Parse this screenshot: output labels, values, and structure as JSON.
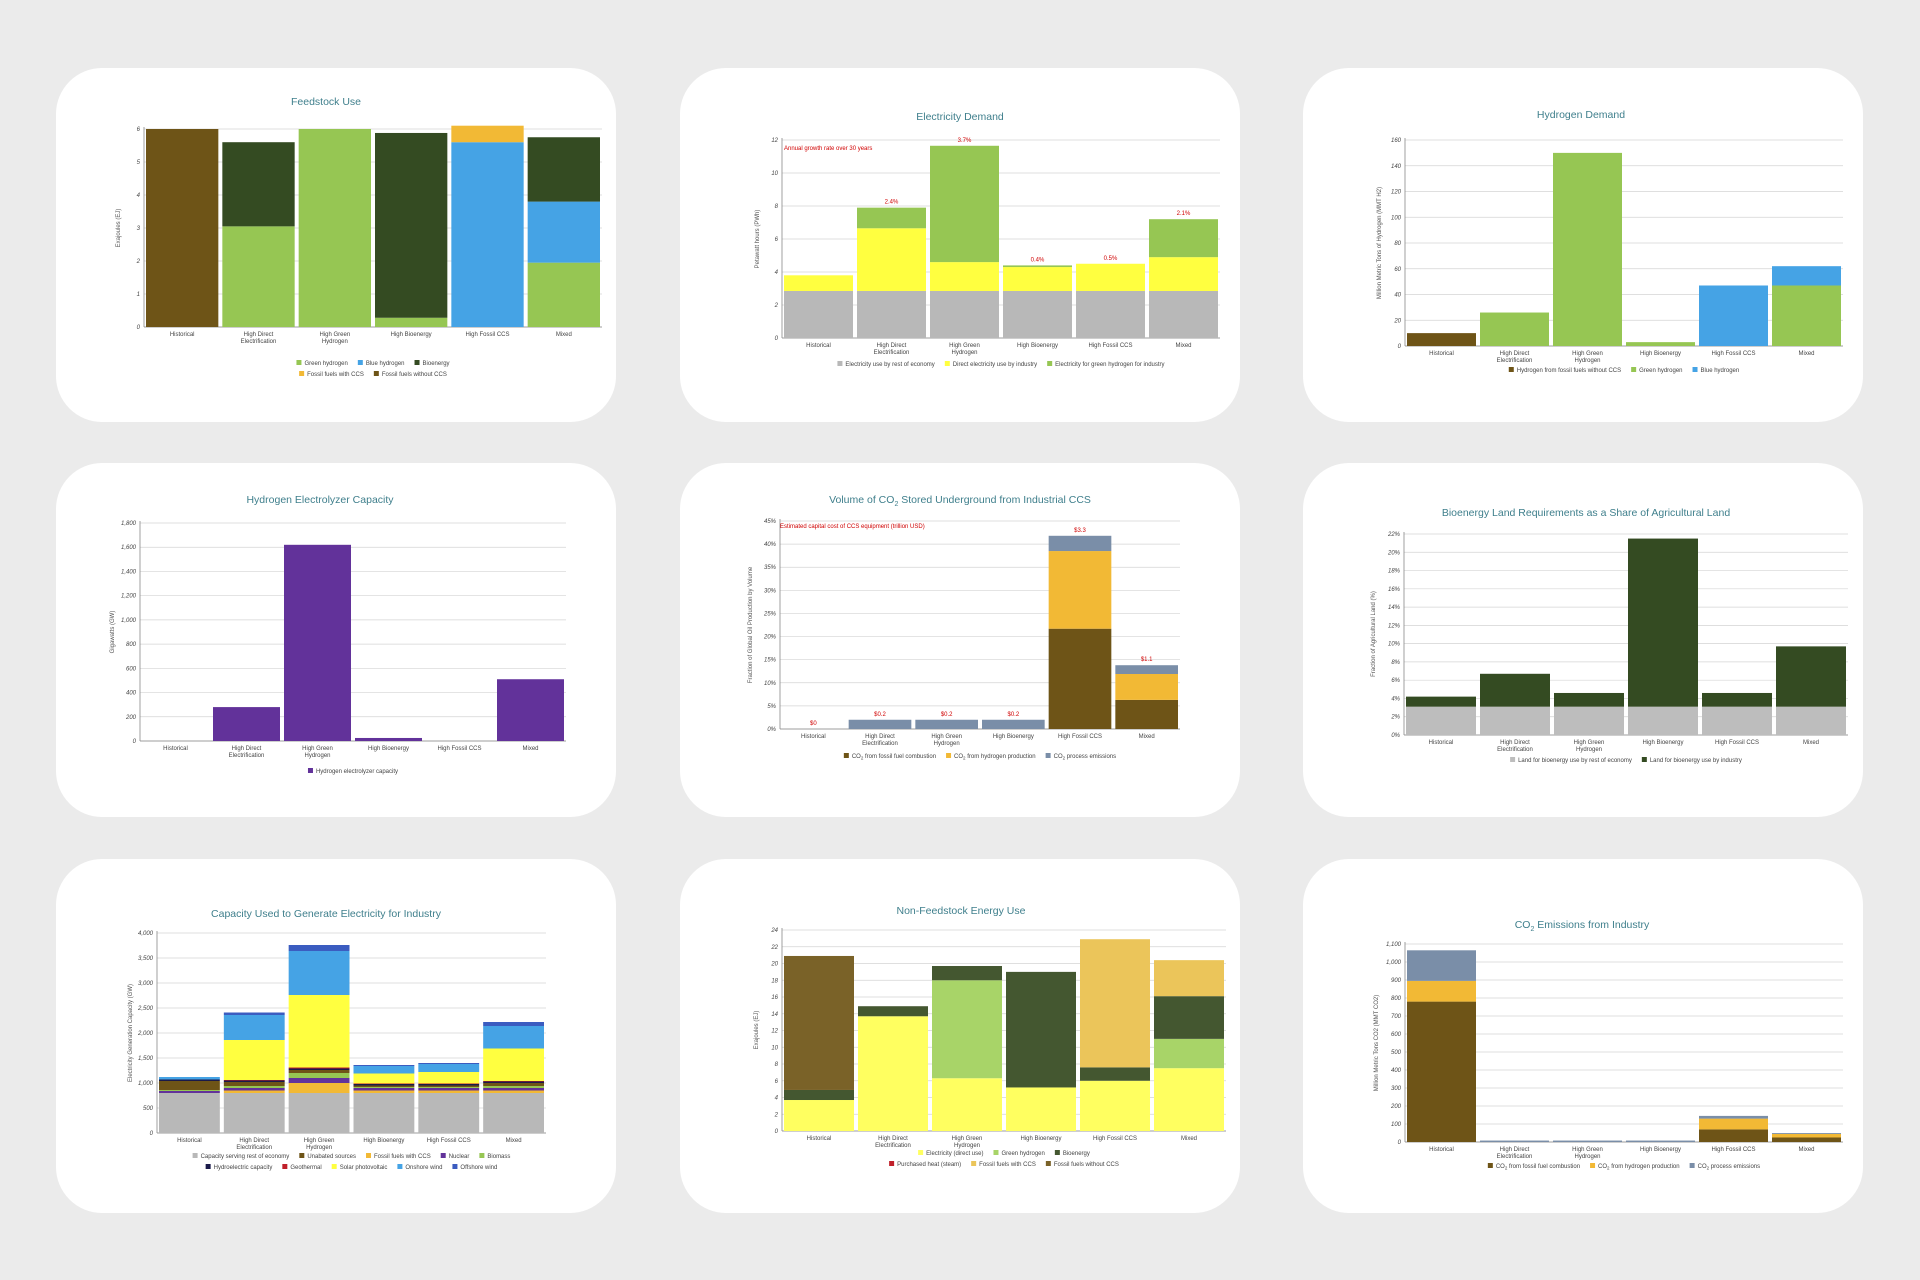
{
  "chart_data": [
    {
      "id": "feedstock",
      "type": "bar",
      "stacked": true,
      "title": "Feedstock Use",
      "ylabel": "Exajoules (EJ)",
      "ylim": [
        0,
        6
      ],
      "yticks": [
        "0",
        "1",
        "2",
        "3",
        "4",
        "5",
        "6"
      ],
      "ytick_values": [
        0,
        1,
        2,
        3,
        4,
        5,
        6
      ],
      "categories": [
        [
          "Historical"
        ],
        [
          "High Direct",
          "Electrification"
        ],
        [
          "High Green",
          "Hydrogen"
        ],
        [
          "High Bioenergy"
        ],
        [
          "High Fossil CCS"
        ],
        [
          "Mixed"
        ]
      ],
      "series": [
        {
          "name": "Fossil fuels without CCS",
          "color": "#6e5417",
          "values": [
            6.0,
            0,
            0,
            0,
            0,
            0
          ]
        },
        {
          "name": "Green hydrogen",
          "color": "#96c653",
          "values": [
            0,
            3.05,
            6.0,
            0.28,
            0,
            1.95
          ]
        },
        {
          "name": "Blue hydrogen",
          "color": "#45a3e5",
          "values": [
            0,
            0,
            0,
            0,
            5.6,
            1.85
          ]
        },
        {
          "name": "Bioenergy",
          "color": "#344b22",
          "values": [
            0,
            2.55,
            0,
            5.6,
            0,
            1.95
          ]
        },
        {
          "name": "Fossil fuels with CCS",
          "color": "#f2b935",
          "values": [
            0,
            0,
            0,
            0,
            0.5,
            0
          ]
        }
      ],
      "legend_rows": [
        [
          "Green hydrogen",
          "Blue hydrogen",
          "Bioenergy"
        ],
        [
          "Fossil fuels with CCS",
          "Fossil fuels without CCS"
        ]
      ]
    },
    {
      "id": "electricity",
      "type": "bar",
      "stacked": true,
      "title": "Electricity Demand",
      "ylabel": "Petawatt hours (PWh)",
      "ylim": [
        0,
        12
      ],
      "yticks": [
        "0",
        "2",
        "4",
        "6",
        "8",
        "10",
        "12"
      ],
      "ytick_values": [
        0,
        2,
        4,
        6,
        8,
        10,
        12
      ],
      "note": "Annual growth rate over 30 years",
      "categories": [
        [
          "Historical"
        ],
        [
          "High Direct",
          "Electrification"
        ],
        [
          "High Green",
          "Hydrogen"
        ],
        [
          "High Bioenergy"
        ],
        [
          "High Fossil CCS"
        ],
        [
          "Mixed"
        ]
      ],
      "series": [
        {
          "name": "Electricity use by rest of economy",
          "color": "#b8b8b8",
          "values": [
            2.85,
            2.85,
            2.85,
            2.85,
            2.85,
            2.85
          ]
        },
        {
          "name": "Direct electricity use by industry",
          "color": "#ffff40",
          "values": [
            0.95,
            3.8,
            1.75,
            1.45,
            1.65,
            2.05
          ]
        },
        {
          "name": "Electricity for green hydrogen for industry",
          "color": "#96c653",
          "values": [
            0,
            1.25,
            7.05,
            0.1,
            0,
            2.3
          ]
        }
      ],
      "data_labels": [
        "",
        "2.4%",
        "3.7%",
        "0.4%",
        "0.5%",
        "2.1%"
      ],
      "legend_rows": [
        [
          "Electricity use by rest of economy",
          "Direct electricity use by industry",
          "Electricity for green hydrogen for industry"
        ]
      ]
    },
    {
      "id": "hydrogen-demand",
      "type": "bar",
      "stacked": true,
      "title": "Hydrogen Demand",
      "ylabel": "Million Metric Tons of Hydrogen (MMT H2)",
      "ylim": [
        0,
        160
      ],
      "yticks": [
        "0",
        "20",
        "40",
        "60",
        "80",
        "100",
        "120",
        "140",
        "160"
      ],
      "ytick_values": [
        0,
        20,
        40,
        60,
        80,
        100,
        120,
        140,
        160
      ],
      "categories": [
        [
          "Historical"
        ],
        [
          "High Direct",
          "Electrification"
        ],
        [
          "High Green",
          "Hydrogen"
        ],
        [
          "High Bioenergy"
        ],
        [
          "High Fossil CCS"
        ],
        [
          "Mixed"
        ]
      ],
      "series": [
        {
          "name": "Hydrogen from fossil fuels without CCS",
          "color": "#6e5417",
          "values": [
            10,
            0,
            0,
            0,
            0,
            0
          ]
        },
        {
          "name": "Green hydrogen",
          "color": "#96c653",
          "values": [
            0,
            26,
            150,
            3,
            0,
            47
          ]
        },
        {
          "name": "Blue hydrogen",
          "color": "#45a3e5",
          "values": [
            0,
            0,
            0,
            0,
            47,
            15
          ]
        }
      ],
      "legend_rows": [
        [
          "Hydrogen from fossil fuels without CCS",
          "Green hydrogen",
          "Blue hydrogen"
        ]
      ]
    },
    {
      "id": "electrolyzer",
      "type": "bar",
      "stacked": true,
      "title": "Hydrogen Electrolyzer Capacity",
      "ylabel": "Gigawatts (GW)",
      "ylim": [
        0,
        1800
      ],
      "yticks": [
        "0",
        "200",
        "400",
        "600",
        "800",
        "1,000",
        "1,200",
        "1,400",
        "1,600",
        "1,800"
      ],
      "ytick_values": [
        0,
        200,
        400,
        600,
        800,
        1000,
        1200,
        1400,
        1600,
        1800
      ],
      "categories": [
        [
          "Historical"
        ],
        [
          "High Direct",
          "Electrification"
        ],
        [
          "High Green",
          "Hydrogen"
        ],
        [
          "High Bioenergy"
        ],
        [
          "High Fossil CCS"
        ],
        [
          "Mixed"
        ]
      ],
      "series": [
        {
          "name": "Hydrogen electrolyzer capacity",
          "color": "#62329a",
          "values": [
            0,
            280,
            1620,
            25,
            0,
            510
          ]
        }
      ],
      "legend_rows": [
        [
          "Hydrogen electrolyzer capacity"
        ]
      ]
    },
    {
      "id": "co2-stored",
      "type": "bar",
      "stacked": true,
      "title_parts": [
        "Volume of CO",
        "2",
        " Stored Underground from Industrial CCS"
      ],
      "ylabel": "Fraction of Global Oil Production by Volume",
      "ylim": [
        0,
        45
      ],
      "yticks": [
        "0%",
        "5%",
        "10%",
        "15%",
        "20%",
        "25%",
        "30%",
        "35%",
        "40%",
        "45%"
      ],
      "ytick_values": [
        0,
        5,
        10,
        15,
        20,
        25,
        30,
        35,
        40,
        45
      ],
      "note": "Estimated capital cost of CCS equipment (trillion USD)",
      "categories": [
        [
          "Historical"
        ],
        [
          "High Direct",
          "Electrification"
        ],
        [
          "High Green",
          "Hydrogen"
        ],
        [
          "High Bioenergy"
        ],
        [
          "High Fossil CCS"
        ],
        [
          "Mixed"
        ]
      ],
      "series": [
        {
          "name": "CO2 from fossil fuel combustion",
          "color": "#6e5417",
          "values": [
            0,
            0,
            0,
            0,
            21.7,
            6.3
          ]
        },
        {
          "name": "CO2 from hydrogen production",
          "color": "#f2b935",
          "values": [
            0,
            0,
            0,
            0,
            16.8,
            5.6
          ]
        },
        {
          "name": "CO2 process emissions",
          "color": "#7a8ea8",
          "values": [
            0,
            2.0,
            2.0,
            2.0,
            3.3,
            1.9
          ]
        }
      ],
      "data_labels": [
        "$0",
        "$0.2",
        "$0.2",
        "$0.2",
        "$3.3",
        "$1.1"
      ],
      "legend_rows": [
        [
          "CO2 from fossil fuel combustion",
          "CO2 from hydrogen production",
          "CO2 process emissions"
        ]
      ]
    },
    {
      "id": "bioenergy-land",
      "type": "bar",
      "stacked": true,
      "title": "Bioenergy Land Requirements as a Share of Agricultural Land",
      "ylabel": "Fraction of Agricultural Land (%)",
      "ylim": [
        0,
        22
      ],
      "yticks": [
        "0%",
        "2%",
        "4%",
        "6%",
        "8%",
        "10%",
        "12%",
        "14%",
        "16%",
        "18%",
        "20%",
        "22%"
      ],
      "ytick_values": [
        0,
        2,
        4,
        6,
        8,
        10,
        12,
        14,
        16,
        18,
        20,
        22
      ],
      "categories": [
        [
          "Historical"
        ],
        [
          "High Direct",
          "Electrification"
        ],
        [
          "High Green",
          "Hydrogen"
        ],
        [
          "High Bioenergy"
        ],
        [
          "High Fossil CCS"
        ],
        [
          "Mixed"
        ]
      ],
      "series": [
        {
          "name": "Land for bioenergy use by rest of economy",
          "color": "#bdbdbd",
          "values": [
            3.1,
            3.1,
            3.1,
            3.1,
            3.1,
            3.1
          ]
        },
        {
          "name": "Land for bioenergy use by industry",
          "color": "#344b22",
          "values": [
            1.1,
            3.6,
            1.5,
            18.4,
            1.5,
            6.6
          ]
        }
      ],
      "legend_rows": [
        [
          "Land for bioenergy use by rest of economy",
          "Land for bioenergy use by industry"
        ]
      ]
    },
    {
      "id": "capacity",
      "type": "bar",
      "stacked": true,
      "title": "Capacity Used to Generate Electricity for Industry",
      "ylabel": "Electricity Generation Capacity (GW)",
      "ylim": [
        0,
        4000
      ],
      "yticks": [
        "0",
        "500",
        "1,000",
        "1,500",
        "2,000",
        "2,500",
        "3,000",
        "3,500",
        "4,000"
      ],
      "ytick_values": [
        0,
        500,
        1000,
        1500,
        2000,
        2500,
        3000,
        3500,
        4000
      ],
      "categories": [
        [
          "Historical"
        ],
        [
          "High Direct",
          "Electrification"
        ],
        [
          "High Green",
          "Hydrogen"
        ],
        [
          "High Bioenergy"
        ],
        [
          "High Fossil CCS"
        ],
        [
          "Mixed"
        ]
      ],
      "series": [
        {
          "name": "Capacity serving rest of economy",
          "color": "#b8b8b8",
          "values": [
            800,
            800,
            800,
            800,
            800,
            800
          ]
        },
        {
          "name": "Fossil fuels with CCS",
          "color": "#f2b935",
          "values": [
            0,
            50,
            200,
            50,
            50,
            50
          ]
        },
        {
          "name": "Nuclear",
          "color": "#62329a",
          "values": [
            40,
            50,
            100,
            50,
            50,
            50
          ]
        },
        {
          "name": "Biomass",
          "color": "#96c653",
          "values": [
            20,
            40,
            100,
            20,
            20,
            40
          ]
        },
        {
          "name": "Unabated sources",
          "color": "#6e5417",
          "values": [
            180,
            80,
            60,
            30,
            30,
            60
          ]
        },
        {
          "name": "Hydroelectric capacity",
          "color": "#1a1a4a",
          "values": [
            30,
            30,
            30,
            30,
            30,
            30
          ]
        },
        {
          "name": "Geothermal",
          "color": "#c0202a",
          "values": [
            0,
            10,
            20,
            10,
            10,
            10
          ]
        },
        {
          "name": "Solar photovoltaic",
          "color": "#ffff40",
          "values": [
            0,
            800,
            1450,
            200,
            230,
            650
          ]
        },
        {
          "name": "Onshore wind",
          "color": "#45a3e5",
          "values": [
            50,
            500,
            880,
            150,
            160,
            450
          ]
        },
        {
          "name": "Offshore wind",
          "color": "#3b5cc0",
          "values": [
            0,
            50,
            120,
            20,
            20,
            80
          ]
        }
      ],
      "legend_rows": [
        [
          "Capacity serving rest of economy",
          "Unabated sources",
          "Fossil fuels with CCS",
          "Nuclear",
          "Biomass"
        ],
        [
          "Hydroelectric capacity",
          "Geothermal",
          "Solar photovoltaic",
          "Onshore wind",
          "Offshore wind"
        ]
      ]
    },
    {
      "id": "non-feedstock",
      "type": "bar",
      "stacked": true,
      "title": "Non-Feedstock Energy Use",
      "ylabel": "Exajoules (EJ)",
      "ylim": [
        0,
        24
      ],
      "yticks": [
        "0",
        "2",
        "4",
        "6",
        "8",
        "10",
        "12",
        "14",
        "16",
        "18",
        "20",
        "22",
        "24"
      ],
      "ytick_values": [
        0,
        2,
        4,
        6,
        8,
        10,
        12,
        14,
        16,
        18,
        20,
        22,
        24
      ],
      "categories": [
        [
          "Historical"
        ],
        [
          "High Direct",
          "Electrification"
        ],
        [
          "High Green",
          "Hydrogen"
        ],
        [
          "High Bioenergy"
        ],
        [
          "High Fossil CCS"
        ],
        [
          "Mixed"
        ]
      ],
      "series": [
        {
          "name": "Electricity (direct use)",
          "color": "#ffff60",
          "values": [
            3.7,
            13.7,
            6.3,
            5.2,
            6.0,
            7.5
          ]
        },
        {
          "name": "Green hydrogen",
          "color": "#a8d468",
          "values": [
            0,
            0,
            11.7,
            0,
            0,
            3.5
          ]
        },
        {
          "name": "Bioenergy",
          "color": "#445730",
          "values": [
            1.2,
            1.2,
            1.7,
            13.8,
            1.6,
            5.1
          ]
        },
        {
          "name": "Purchased heat (steam)",
          "color": "#c0202a",
          "values": [
            0,
            0,
            0,
            0,
            0,
            0
          ]
        },
        {
          "name": "Fossil fuels with CCS",
          "color": "#ebc55a",
          "values": [
            0,
            0,
            0,
            0,
            15.3,
            4.3
          ]
        },
        {
          "name": "Fossil fuels without CCS",
          "color": "#7a6228",
          "values": [
            16.0,
            0,
            0,
            0,
            0,
            0
          ]
        }
      ],
      "legend_rows": [
        [
          "Electricity (direct use)",
          "Green hydrogen",
          "Bioenergy"
        ],
        [
          "Purchased heat (steam)",
          "Fossil fuels with CCS",
          "Fossil fuels without CCS"
        ]
      ]
    },
    {
      "id": "co2-emissions",
      "type": "bar",
      "stacked": true,
      "title_parts": [
        "CO",
        "2",
        " Emissions from Industry"
      ],
      "ylabel": "Million Metric Tons CO2 (MMT CO2)",
      "ylim": [
        0,
        1100
      ],
      "yticks": [
        "0",
        "100",
        "200",
        "300",
        "400",
        "500",
        "600",
        "700",
        "800",
        "900",
        "1,000",
        "1,100"
      ],
      "ytick_values": [
        0,
        100,
        200,
        300,
        400,
        500,
        600,
        700,
        800,
        900,
        1000,
        1100
      ],
      "categories": [
        [
          "Historical"
        ],
        [
          "High Direct",
          "Electrification"
        ],
        [
          "High Green",
          "Hydrogen"
        ],
        [
          "High Bioenergy"
        ],
        [
          "High Fossil CCS"
        ],
        [
          "Mixed"
        ]
      ],
      "series": [
        {
          "name": "CO2 from fossil fuel combustion",
          "color": "#6e5417",
          "values": [
            780,
            0,
            0,
            0,
            70,
            25
          ]
        },
        {
          "name": "CO2 from hydrogen production",
          "color": "#f2b935",
          "values": [
            115,
            0,
            0,
            0,
            60,
            20
          ]
        },
        {
          "name": "CO2 process emissions",
          "color": "#7a8ea8",
          "values": [
            170,
            8,
            8,
            8,
            15,
            5
          ]
        }
      ],
      "legend_rows": [
        [
          "CO2 from fossil fuel combustion",
          "CO2 from hydrogen production",
          "CO2 process emissions"
        ]
      ]
    }
  ]
}
